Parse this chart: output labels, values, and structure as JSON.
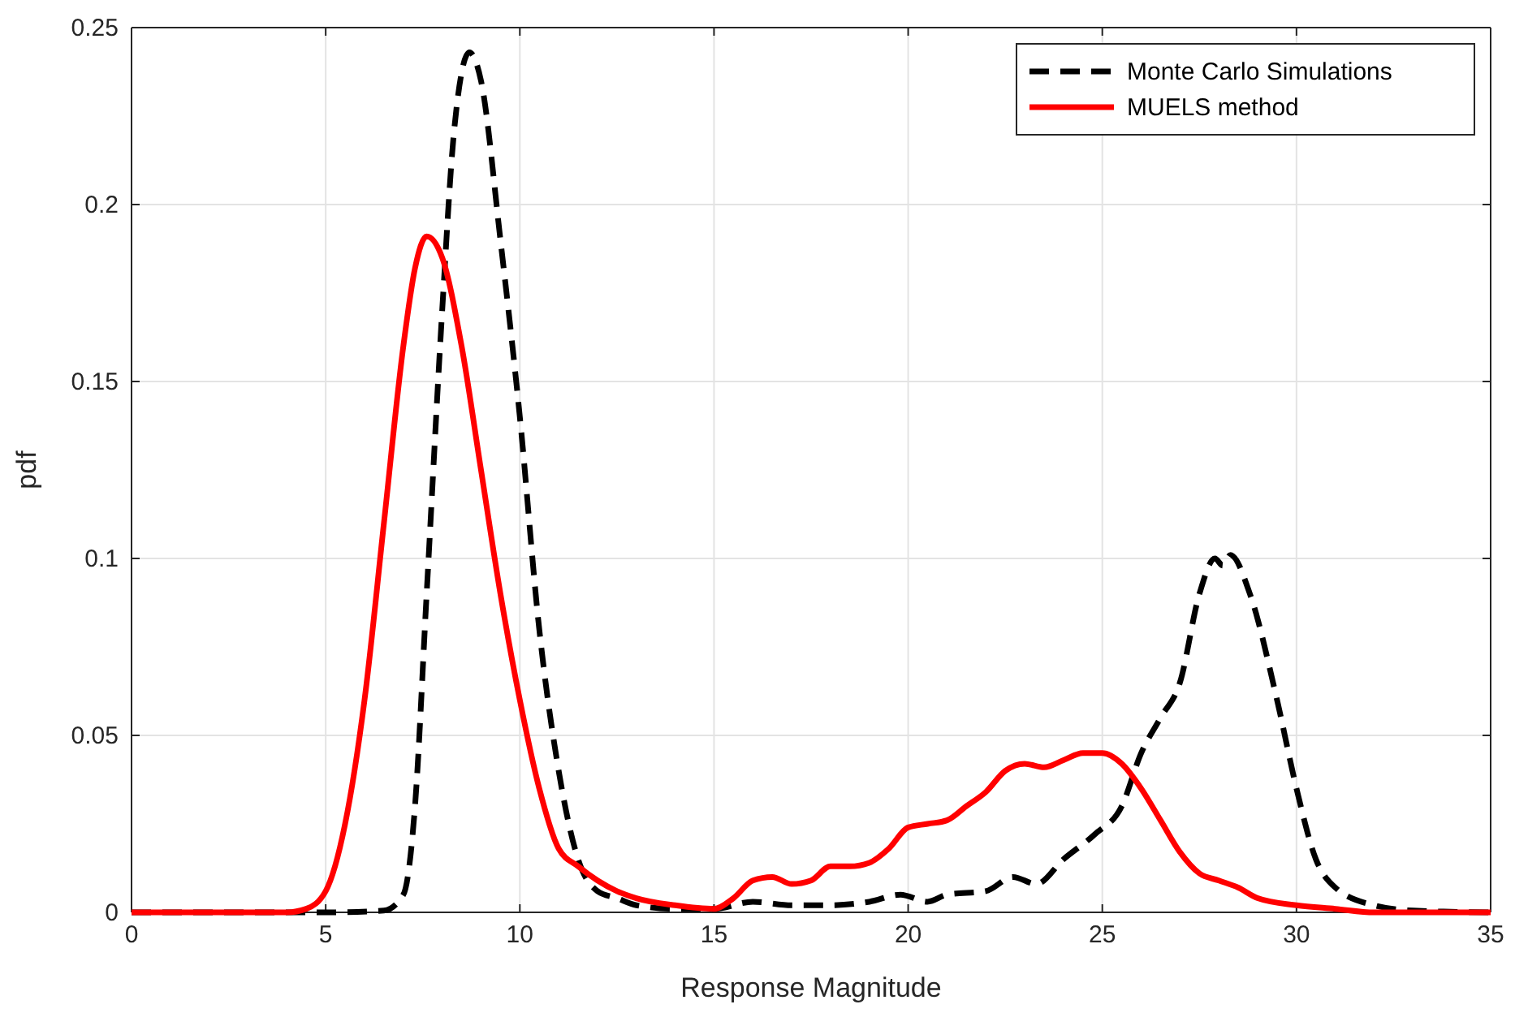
{
  "chart_data": {
    "type": "line",
    "xlabel": "Response Magnitude",
    "ylabel": "pdf",
    "xlim": [
      0,
      35
    ],
    "xticks": [
      0,
      5,
      10,
      15,
      20,
      25,
      30,
      35
    ],
    "ylim": [
      0,
      0.25
    ],
    "yticks": [
      0,
      0.05,
      0.1,
      0.15,
      0.2,
      0.25
    ],
    "grid": true,
    "legend": "top right",
    "series": [
      {
        "name": "Monte Carlo Simulations",
        "color": "#000000",
        "line_style": "dashed",
        "x": [
          0,
          5,
          6.5,
          7,
          7.3,
          7.6,
          8,
          8.3,
          8.7,
          9,
          9.5,
          10,
          10.5,
          11,
          11.5,
          12,
          12.5,
          13,
          14,
          15,
          16,
          17,
          18,
          19,
          19.8,
          20.5,
          21,
          22,
          22.7,
          23.3,
          24,
          24.8,
          25.5,
          26,
          26.5,
          27,
          27.5,
          27.9,
          28.1,
          28.3,
          28.8,
          29.5,
          30,
          30.5,
          31,
          32,
          33,
          35
        ],
        "values": [
          0,
          0,
          0.0005,
          0.005,
          0.03,
          0.09,
          0.17,
          0.22,
          0.243,
          0.235,
          0.19,
          0.14,
          0.08,
          0.04,
          0.015,
          0.006,
          0.004,
          0.002,
          0.001,
          0.001,
          0.003,
          0.002,
          0.002,
          0.003,
          0.005,
          0.003,
          0.005,
          0.006,
          0.01,
          0.008,
          0.015,
          0.022,
          0.03,
          0.045,
          0.055,
          0.065,
          0.09,
          0.1,
          0.098,
          0.101,
          0.09,
          0.06,
          0.035,
          0.015,
          0.007,
          0.002,
          0.0005,
          0
        ]
      },
      {
        "name": "MUELS method",
        "color": "#ff0000",
        "line_style": "solid",
        "x": [
          0,
          4,
          4.5,
          5,
          5.5,
          6,
          6.5,
          7,
          7.3,
          7.6,
          8,
          8.5,
          9,
          9.5,
          10,
          10.5,
          11,
          11.5,
          12,
          12.5,
          13,
          14,
          15,
          15.5,
          16,
          16.5,
          17,
          17.5,
          18,
          18.5,
          19,
          19.5,
          20,
          20.5,
          21,
          21.5,
          22,
          22.5,
          23,
          23.5,
          24,
          24.5,
          25,
          25.5,
          26,
          26.5,
          27,
          27.5,
          28,
          28.5,
          29,
          30,
          31,
          32,
          35
        ],
        "values": [
          0,
          0,
          0.001,
          0.006,
          0.025,
          0.06,
          0.11,
          0.16,
          0.182,
          0.191,
          0.185,
          0.16,
          0.125,
          0.09,
          0.06,
          0.035,
          0.018,
          0.013,
          0.009,
          0.006,
          0.004,
          0.002,
          0.001,
          0.004,
          0.009,
          0.01,
          0.008,
          0.009,
          0.013,
          0.013,
          0.014,
          0.018,
          0.024,
          0.025,
          0.026,
          0.03,
          0.034,
          0.04,
          0.042,
          0.041,
          0.043,
          0.045,
          0.045,
          0.042,
          0.035,
          0.026,
          0.017,
          0.011,
          0.009,
          0.007,
          0.004,
          0.002,
          0.001,
          0,
          0
        ]
      }
    ]
  }
}
